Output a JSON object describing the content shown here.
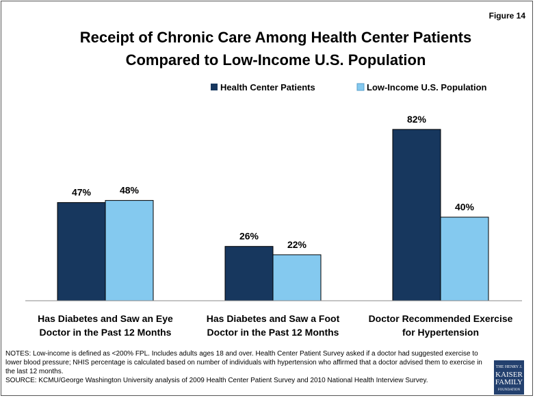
{
  "chart_data": {
    "type": "bar",
    "figure_label": "Figure 14",
    "title": "Receipt of Chronic Care Among Health Center Patients Compared to Low-Income U.S. Population",
    "categories": [
      "Has Diabetes and Saw an Eye Doctor in the Past 12 Months",
      "Has Diabetes and Saw a Foot Doctor in the Past 12 Months",
      "Doctor Recommended Exercise for Hypertension"
    ],
    "series": [
      {
        "name": "Health Center Patients",
        "color": "#17375e",
        "values": [
          47,
          26,
          82
        ],
        "value_labels": [
          "47%",
          "26%",
          "82%"
        ]
      },
      {
        "name": "Low-Income U.S. Population",
        "color": "#84c9ef",
        "values": [
          48,
          22,
          40
        ],
        "value_labels": [
          "48%",
          "22%",
          "40%"
        ]
      }
    ],
    "legend": "top-right",
    "notes": "NOTES: Low-income is defined as <200% FPL. Includes adults ages 18 and over. Health Center Patient Survey asked if a doctor had suggested exercise to lower blood pressure; NHIS percentage is calculated based on number of individuals with hypertension who affirmed that a doctor advised them to exercise in the last 12 months.",
    "source": "SOURCE: KCMU/George Washington University analysis of 2009 Health Center Patient Survey and 2010 National Health Interview Survey.",
    "logo": [
      "THE HENRY J.",
      "KAISER",
      "FAMILY",
      "FOUNDATION"
    ]
  }
}
